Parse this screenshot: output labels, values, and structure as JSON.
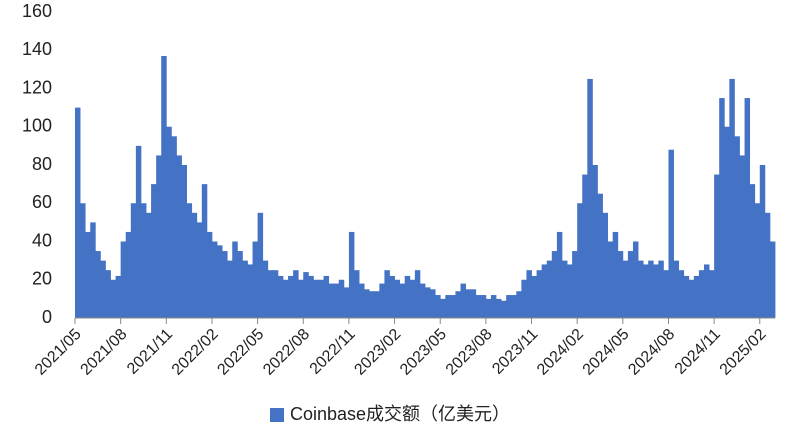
{
  "chart_data": {
    "type": "bar",
    "categories": [
      "2021/05",
      null,
      null,
      null,
      null,
      null,
      null,
      null,
      null,
      "2021/08",
      null,
      null,
      null,
      null,
      null,
      null,
      null,
      null,
      "2021/11",
      null,
      null,
      null,
      null,
      null,
      null,
      null,
      null,
      "2022/02",
      null,
      null,
      null,
      null,
      null,
      null,
      null,
      null,
      "2022/05",
      null,
      null,
      null,
      null,
      null,
      null,
      null,
      null,
      "2022/08",
      null,
      null,
      null,
      null,
      null,
      null,
      null,
      null,
      "2022/11",
      null,
      null,
      null,
      null,
      null,
      null,
      null,
      null,
      "2023/02",
      null,
      null,
      null,
      null,
      null,
      null,
      null,
      null,
      "2023/05",
      null,
      null,
      null,
      null,
      null,
      null,
      null,
      null,
      "2023/08",
      null,
      null,
      null,
      null,
      null,
      null,
      null,
      null,
      "2023/11",
      null,
      null,
      null,
      null,
      null,
      null,
      null,
      null,
      "2024/02",
      null,
      null,
      null,
      null,
      null,
      null,
      null,
      null,
      "2024/05",
      null,
      null,
      null,
      null,
      null,
      null,
      null,
      null,
      "2024/08",
      null,
      null,
      null,
      null,
      null,
      null,
      null,
      null,
      "2024/11",
      null,
      null,
      null,
      null,
      null,
      null,
      null,
      null,
      "2025/02",
      null,
      null
    ],
    "series": [
      {
        "name": "Coinbase成交额（亿美元）",
        "color": "#4472c4",
        "values": [
          110,
          60,
          45,
          50,
          35,
          30,
          25,
          20,
          22,
          40,
          45,
          60,
          90,
          60,
          55,
          70,
          85,
          137,
          100,
          95,
          85,
          80,
          60,
          55,
          50,
          70,
          45,
          40,
          38,
          35,
          30,
          40,
          35,
          30,
          28,
          40,
          55,
          30,
          25,
          25,
          22,
          20,
          22,
          25,
          20,
          24,
          22,
          20,
          20,
          22,
          18,
          18,
          20,
          16,
          45,
          25,
          18,
          15,
          14,
          14,
          18,
          25,
          22,
          20,
          18,
          22,
          20,
          25,
          18,
          16,
          15,
          12,
          10,
          12,
          12,
          14,
          18,
          15,
          15,
          12,
          12,
          10,
          12,
          10,
          9,
          12,
          12,
          14,
          20,
          25,
          22,
          25,
          28,
          30,
          35,
          45,
          30,
          28,
          35,
          60,
          75,
          125,
          80,
          65,
          55,
          40,
          45,
          35,
          30,
          35,
          40,
          30,
          28,
          30,
          28,
          30,
          25,
          88,
          30,
          25,
          22,
          20,
          22,
          25,
          28,
          25,
          75,
          115,
          100,
          125,
          95,
          85,
          115,
          70,
          60,
          80,
          55,
          40
        ]
      }
    ],
    "ylim": [
      0,
      160
    ],
    "yticks": [
      0,
      20,
      40,
      60,
      80,
      100,
      120,
      140,
      160
    ],
    "grid": false,
    "legend": "bottom"
  }
}
